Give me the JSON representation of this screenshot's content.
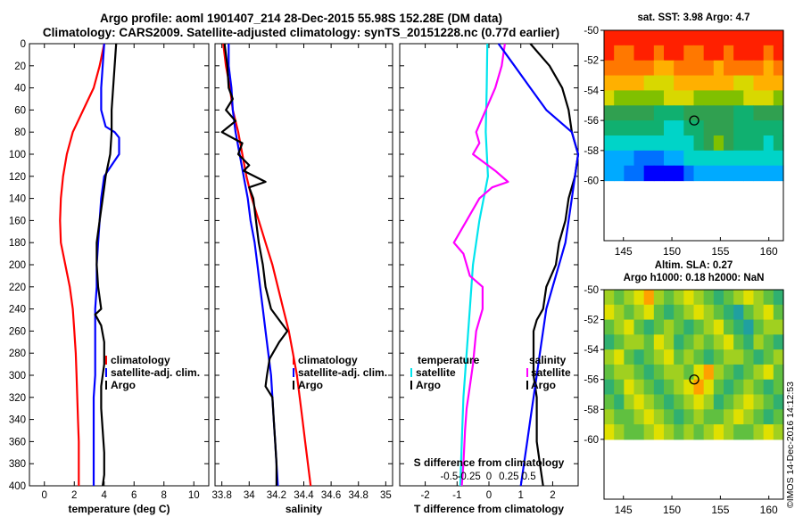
{
  "header": {
    "line1": "Argo profile: aoml 1901407_214 28-Dec-2015 55.98S 152.28E (DM data)",
    "line2": "Climatology: CARS2009. Satellite-adjusted climatology: synTS_20151228.nc (0.77d earlier)"
  },
  "stamp": "©IMOS 14-Dec-2016 14:12:53",
  "colors": {
    "clim": "#ff0000",
    "sat": "#0000ff",
    "argo": "#000000",
    "s_diff": "#ff00ff",
    "t_diff": "#00e5ee"
  },
  "chart_data": [
    {
      "id": "temperature",
      "type": "line",
      "xlabel": "temperature (deg C)",
      "xlim": [
        -1,
        11
      ],
      "xticks": [
        0,
        2,
        4,
        6,
        8,
        10
      ],
      "xtick_labels": [
        "0",
        "2",
        "4",
        "6",
        "8",
        "10"
      ],
      "ylim": [
        0,
        400
      ],
      "yticks": [
        0,
        20,
        40,
        60,
        80,
        100,
        120,
        140,
        160,
        180,
        200,
        220,
        240,
        260,
        280,
        300,
        320,
        340,
        360,
        380,
        400
      ],
      "ytick_labels": [
        "0",
        "20",
        "40",
        "60",
        "80",
        "100",
        "120",
        "140",
        "160",
        "180",
        "200",
        "220",
        "240",
        "260",
        "280",
        "300",
        "320",
        "340",
        "360",
        "380",
        "400"
      ],
      "legend": [
        "climatology",
        "satellite-adj. clim.",
        "Argo"
      ],
      "series": [
        {
          "name": "climatology",
          "color": "#ff0000",
          "depth": [
            0,
            20,
            40,
            60,
            80,
            100,
            120,
            140,
            160,
            180,
            200,
            220,
            240,
            260,
            280,
            300,
            320,
            340,
            360,
            380,
            400
          ],
          "values": [
            4.0,
            3.7,
            3.3,
            2.6,
            1.9,
            1.5,
            1.25,
            1.1,
            1.05,
            1.1,
            1.4,
            1.7,
            1.9,
            2.0,
            2.1,
            2.15,
            2.2,
            2.25,
            2.3,
            2.3,
            2.3
          ]
        },
        {
          "name": "satellite-adj. clim.",
          "color": "#0000ff",
          "depth": [
            0,
            20,
            40,
            60,
            75,
            80,
            85,
            90,
            100,
            110,
            120,
            140,
            160,
            180,
            200,
            220,
            240,
            260,
            280,
            300,
            320,
            340,
            360,
            380,
            400
          ],
          "values": [
            4.0,
            3.9,
            3.8,
            3.8,
            4.1,
            4.7,
            5.0,
            5.0,
            5.0,
            4.5,
            4.0,
            3.8,
            3.7,
            3.6,
            3.5,
            3.5,
            3.4,
            3.4,
            3.4,
            3.4,
            3.3,
            3.3,
            3.3,
            3.3,
            3.3
          ]
        },
        {
          "name": "Argo",
          "color": "#000000",
          "depth": [
            0,
            20,
            40,
            60,
            80,
            100,
            120,
            130,
            140,
            160,
            180,
            200,
            220,
            240,
            245,
            255,
            270,
            290,
            310,
            330,
            350,
            370,
            390,
            400
          ],
          "values": [
            4.8,
            4.7,
            4.6,
            4.5,
            4.5,
            4.4,
            4.1,
            4.0,
            3.9,
            3.7,
            3.5,
            3.5,
            3.6,
            3.8,
            3.4,
            3.8,
            4.0,
            4.0,
            3.8,
            3.8,
            3.9,
            4.0,
            4.0,
            3.9
          ]
        }
      ]
    },
    {
      "id": "salinity",
      "type": "line",
      "xlabel": "salinity",
      "xlim": [
        33.75,
        35.05
      ],
      "xticks": [
        33.8,
        34.0,
        34.2,
        34.4,
        34.6,
        34.8,
        35.0
      ],
      "xtick_labels": [
        "33.8",
        "34",
        "34.2",
        "34.4",
        "34.6",
        "34.8",
        "35"
      ],
      "ylim": [
        0,
        400
      ],
      "legend": [
        "climatology",
        "satellite-adj. clim.",
        "Argo"
      ],
      "series": [
        {
          "name": "climatology",
          "color": "#ff0000",
          "depth": [
            0,
            20,
            40,
            60,
            80,
            100,
            120,
            140,
            160,
            180,
            200,
            220,
            240,
            260,
            280,
            300,
            320,
            340,
            360,
            380,
            400
          ],
          "values": [
            33.81,
            33.83,
            33.86,
            33.88,
            33.92,
            33.95,
            33.98,
            34.02,
            34.07,
            34.12,
            34.17,
            34.21,
            34.25,
            34.29,
            34.32,
            34.35,
            34.37,
            34.39,
            34.41,
            34.43,
            34.45
          ]
        },
        {
          "name": "satellite-adj. clim.",
          "color": "#0000ff",
          "depth": [
            0,
            20,
            40,
            60,
            80,
            100,
            120,
            140,
            160,
            180,
            200,
            220,
            240,
            260,
            280,
            300,
            320,
            340,
            360,
            380,
            400
          ],
          "values": [
            33.85,
            33.85,
            33.87,
            33.88,
            33.9,
            33.93,
            33.96,
            33.99,
            34.01,
            34.04,
            34.06,
            34.08,
            34.1,
            34.12,
            34.14,
            34.16,
            34.17,
            34.18,
            34.19,
            34.2,
            34.21
          ]
        },
        {
          "name": "Argo",
          "color": "#000000",
          "depth": [
            0,
            20,
            40,
            50,
            60,
            70,
            80,
            90,
            100,
            110,
            115,
            125,
            130,
            140,
            160,
            180,
            200,
            220,
            240,
            250,
            260,
            270,
            285,
            300,
            310,
            320,
            340,
            360,
            380,
            400
          ],
          "values": [
            33.82,
            33.84,
            33.85,
            33.88,
            33.83,
            33.9,
            33.8,
            33.95,
            33.92,
            34.0,
            33.96,
            34.12,
            34.0,
            34.03,
            34.05,
            34.07,
            34.1,
            34.12,
            34.16,
            34.22,
            34.28,
            34.22,
            34.15,
            34.13,
            34.12,
            34.17,
            34.18,
            34.19,
            34.2,
            34.2
          ]
        }
      ]
    },
    {
      "id": "difference",
      "type": "line",
      "xlabel": "T difference from climatology",
      "xlim": [
        -2.8,
        2.8
      ],
      "xticks": [
        -2,
        -1,
        0,
        1,
        2
      ],
      "xtick_labels": [
        "-2",
        "-1",
        "0",
        "1",
        "2"
      ],
      "top_label": "S difference from climatology",
      "top_ticks_T": [
        -1.25,
        -0.625,
        0,
        0.625,
        1.25
      ],
      "top_tick_labels": [
        "-0.5",
        "-0.25",
        "0",
        "0.25",
        "0.5"
      ],
      "ylim": [
        0,
        400
      ],
      "legend_left": [
        "temperature",
        "satellite",
        "Argo"
      ],
      "legend_right": [
        "salinity",
        "satellite",
        "Argo"
      ],
      "series": [
        {
          "name": "T satellite",
          "color": "#00e5ee",
          "depth": [
            0,
            40,
            80,
            120,
            160,
            200,
            240,
            280,
            320,
            360,
            400
          ],
          "values": [
            -0.05,
            -0.07,
            -0.1,
            -0.03,
            -0.3,
            -0.5,
            -0.6,
            -0.7,
            -0.8,
            -0.85,
            -0.9
          ]
        },
        {
          "name": "S satellite",
          "color": "#ff00ff",
          "depth": [
            0,
            20,
            40,
            60,
            80,
            90,
            100,
            115,
            125,
            130,
            140,
            160,
            180,
            190,
            210,
            220,
            240,
            260,
            290,
            310,
            330,
            350,
            380,
            400
          ],
          "values": [
            0.5,
            0.4,
            0.2,
            -0.1,
            -0.4,
            -0.3,
            -0.5,
            0.2,
            0.6,
            0.1,
            -0.3,
            -0.7,
            -1.1,
            -0.8,
            -0.6,
            -0.2,
            -0.2,
            -0.4,
            -0.5,
            -0.6,
            -0.7,
            -0.75,
            -0.8,
            -0.85
          ]
        },
        {
          "name": "T Argo",
          "color": "#000000",
          "depth": [
            0,
            20,
            40,
            60,
            80,
            100,
            120,
            140,
            160,
            180,
            200,
            220,
            240,
            250,
            260,
            280,
            300,
            320,
            340,
            360,
            380,
            400
          ],
          "values": [
            1.3,
            1.9,
            2.3,
            2.5,
            2.6,
            2.8,
            2.7,
            2.5,
            2.4,
            2.2,
            2.1,
            1.8,
            1.7,
            1.5,
            1.4,
            1.4,
            1.4,
            1.5,
            1.5,
            1.5,
            1.6,
            1.7
          ]
        },
        {
          "name": "S Argo",
          "color": "#0000ff",
          "depth": [
            0,
            20,
            40,
            60,
            80,
            100,
            120,
            140,
            160,
            180,
            200,
            220,
            240,
            260,
            280,
            300,
            320,
            340,
            360,
            380,
            400
          ],
          "values": [
            0.3,
            0.8,
            1.3,
            1.8,
            2.6,
            2.8,
            2.7,
            2.6,
            2.5,
            2.4,
            2.2,
            2.0,
            1.8,
            1.7,
            1.6,
            1.5,
            1.4,
            1.3,
            1.2,
            1.1,
            1.0
          ]
        }
      ]
    },
    {
      "id": "sst_map",
      "type": "heatmap",
      "title": "sat. SST: 3.98 Argo: 4.7",
      "xlim": [
        143,
        161.5
      ],
      "xticks": [
        145,
        150,
        155,
        160
      ],
      "xtick_labels": [
        "145",
        "150",
        "155",
        "160"
      ],
      "ylim": [
        -50,
        -64
      ],
      "yticks": [
        -50,
        -52,
        -54,
        -56,
        -58,
        -60
      ],
      "ytick_labels": [
        "-50",
        "-52",
        "-54",
        "-56",
        "-58",
        "-60"
      ],
      "data_extent": {
        "lon": [
          143,
          161.5
        ],
        "lat": [
          -50,
          -60
        ]
      },
      "marker": {
        "lon": 152.3,
        "lat": -56.0
      },
      "colormap": [
        "#0000ff",
        "#0070ff",
        "#00aaff",
        "#00d4c8",
        "#10b070",
        "#30a050",
        "#80c000",
        "#d8d800",
        "#ffb000",
        "#ff7800",
        "#ff2000"
      ],
      "grid": [
        [
          10,
          10,
          10,
          10,
          10,
          10,
          10,
          10,
          10,
          10,
          10,
          10,
          10,
          10,
          10,
          10,
          10,
          10
        ],
        [
          10,
          9,
          9,
          10,
          10,
          9,
          10,
          10,
          9,
          9,
          10,
          10,
          9,
          10,
          10,
          10,
          9,
          10
        ],
        [
          9,
          9,
          9,
          9,
          9,
          8,
          8,
          9,
          9,
          9,
          9,
          8,
          9,
          9,
          9,
          9,
          8,
          9
        ],
        [
          8,
          8,
          8,
          8,
          7,
          7,
          7,
          8,
          8,
          8,
          8,
          8,
          8,
          7,
          7,
          8,
          8,
          8
        ],
        [
          7,
          6,
          6,
          6,
          6,
          6,
          7,
          7,
          7,
          6,
          6,
          6,
          6,
          6,
          7,
          7,
          7,
          6
        ],
        [
          5,
          5,
          5,
          5,
          5,
          4,
          4,
          4,
          5,
          5,
          5,
          5,
          5,
          4,
          4,
          5,
          5,
          5
        ],
        [
          4,
          4,
          4,
          4,
          4,
          4,
          3,
          3,
          4,
          4,
          5,
          5,
          5,
          4,
          4,
          4,
          4,
          4
        ],
        [
          3,
          3,
          3,
          3,
          3,
          3,
          3,
          3,
          3,
          4,
          5,
          6,
          5,
          4,
          4,
          4,
          3,
          4
        ],
        [
          2,
          2,
          2,
          1,
          1,
          1,
          2,
          2,
          3,
          3,
          3,
          3,
          3,
          3,
          3,
          3,
          3,
          3
        ],
        [
          2,
          2,
          1,
          1,
          0,
          0,
          0,
          0,
          1,
          2,
          2,
          2,
          2,
          2,
          2,
          2,
          2,
          2
        ]
      ]
    },
    {
      "id": "sla_map",
      "type": "heatmap",
      "title": "Altim. SLA: 0.27",
      "subtitle": "Argo h1000: 0.18 h2000: NaN",
      "xlim": [
        143,
        161.5
      ],
      "xticks": [
        145,
        150,
        155,
        160
      ],
      "xtick_labels": [
        "145",
        "150",
        "155",
        "160"
      ],
      "ylim": [
        -50,
        -64
      ],
      "yticks": [
        -50,
        -52,
        -54,
        -56,
        -58,
        -60
      ],
      "ytick_labels": [
        "-50",
        "-52",
        "-54",
        "-56",
        "-58",
        "-60"
      ],
      "data_extent": {
        "lon": [
          143,
          161.5
        ],
        "lat": [
          -50,
          -60
        ]
      },
      "marker": {
        "lon": 152.3,
        "lat": -56.0
      },
      "colormap": [
        "#1060c0",
        "#20a0a0",
        "#30b070",
        "#60c040",
        "#a0d020",
        "#e0e000",
        "#ffa000"
      ],
      "grid": [
        [
          4,
          3,
          4,
          5,
          6,
          4,
          3,
          4,
          5,
          4,
          3,
          2,
          3,
          4,
          5,
          4,
          3,
          2
        ],
        [
          5,
          4,
          3,
          4,
          5,
          3,
          2,
          3,
          4,
          5,
          4,
          3,
          2,
          1,
          3,
          4,
          5,
          3
        ],
        [
          3,
          4,
          5,
          3,
          2,
          3,
          4,
          3,
          2,
          3,
          4,
          5,
          3,
          2,
          1,
          3,
          4,
          4
        ],
        [
          2,
          3,
          4,
          4,
          3,
          5,
          4,
          2,
          3,
          4,
          3,
          4,
          5,
          3,
          2,
          4,
          3,
          2
        ],
        [
          4,
          5,
          3,
          2,
          3,
          4,
          5,
          3,
          4,
          3,
          2,
          3,
          4,
          4,
          3,
          2,
          3,
          4
        ],
        [
          3,
          4,
          4,
          3,
          2,
          3,
          4,
          4,
          3,
          5,
          6,
          4,
          3,
          2,
          3,
          4,
          5,
          3
        ],
        [
          2,
          3,
          5,
          4,
          3,
          2,
          3,
          4,
          5,
          6,
          5,
          3,
          2,
          3,
          4,
          3,
          2,
          3
        ],
        [
          3,
          2,
          4,
          5,
          4,
          3,
          2,
          3,
          4,
          5,
          4,
          2,
          3,
          4,
          5,
          4,
          3,
          2
        ],
        [
          4,
          3,
          3,
          4,
          5,
          4,
          3,
          2,
          3,
          4,
          3,
          3,
          4,
          5,
          4,
          3,
          2,
          3
        ],
        [
          5,
          4,
          3,
          3,
          4,
          5,
          4,
          3,
          4,
          3,
          4,
          5,
          4,
          3,
          3,
          4,
          5,
          4
        ]
      ]
    }
  ]
}
